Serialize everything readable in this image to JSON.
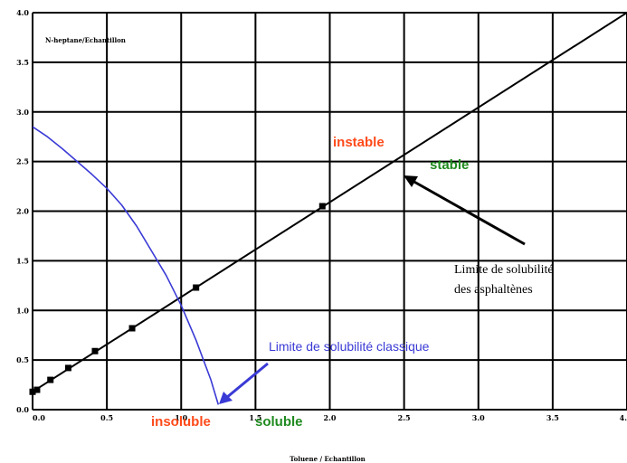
{
  "chart_data": {
    "type": "line",
    "ylabel": "N-heptane/Echantillon",
    "xlabel": "Toluene / Echantillon",
    "xlim": [
      0,
      4.0
    ],
    "ylim": [
      0,
      4.0
    ],
    "x_ticks": [
      "0.0",
      "0.5",
      "1.0",
      "1.5",
      "2.0",
      "2.5",
      "3.0",
      "3.5",
      "4."
    ],
    "y_ticks": [
      "0.0",
      "0.5",
      "1.0",
      "1.5",
      "2.0",
      "2.5",
      "3.0",
      "3.5",
      "4.0"
    ],
    "grid": true,
    "series": [
      {
        "style": "line",
        "color": "#000000",
        "x": [
          0.0,
          4.0
        ],
        "y": [
          0.18,
          4.0
        ]
      },
      {
        "style": "markers",
        "color": "#000000",
        "x": [
          0.0,
          0.03,
          0.12,
          0.24,
          0.42,
          0.67,
          1.1,
          1.95
        ],
        "y": [
          0.18,
          0.2,
          0.3,
          0.42,
          0.59,
          0.82,
          1.23,
          2.05
        ]
      },
      {
        "style": "curve",
        "color": "#3a3ad6",
        "x": [
          0.0,
          0.1,
          0.2,
          0.3,
          0.4,
          0.5,
          0.6,
          0.7,
          0.8,
          0.9,
          1.0,
          1.1,
          1.2,
          1.25
        ],
        "y": [
          2.85,
          2.75,
          2.63,
          2.5,
          2.37,
          2.23,
          2.06,
          1.85,
          1.6,
          1.35,
          1.05,
          0.7,
          0.3,
          0.05
        ]
      }
    ],
    "annotations": {
      "instable": {
        "text": "instable",
        "color": "#ff4a1a"
      },
      "stable": {
        "text": "stable",
        "color": "#1f8a1f"
      },
      "insoluble": {
        "text": "insoluble",
        "color": "#ff4a1a"
      },
      "soluble": {
        "text": "soluble",
        "color": "#1f8a1f"
      },
      "classic_limit": {
        "text": "Limite de solubilité classique",
        "color": "#3a3ad6"
      },
      "asph_limit_line1": {
        "text": "Limite de solubilité",
        "color": "#000000"
      },
      "asph_limit_line2": {
        "text": "des asphaltènes",
        "color": "#000000"
      }
    }
  }
}
